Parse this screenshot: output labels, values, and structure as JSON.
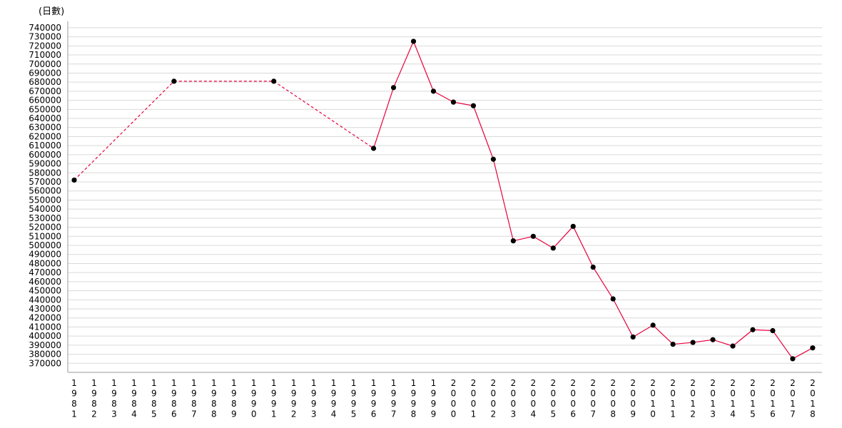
{
  "chart_data": {
    "type": "line",
    "unit_label": "(日數)",
    "ylim": [
      360000,
      747000
    ],
    "y_ticks": [
      370000,
      380000,
      390000,
      400000,
      410000,
      420000,
      430000,
      440000,
      450000,
      460000,
      470000,
      480000,
      490000,
      500000,
      510000,
      520000,
      530000,
      540000,
      550000,
      560000,
      570000,
      580000,
      590000,
      600000,
      610000,
      620000,
      630000,
      640000,
      650000,
      660000,
      670000,
      680000,
      690000,
      700000,
      710000,
      720000,
      730000,
      740000
    ],
    "categories": [
      "1981",
      "1982",
      "1983",
      "1984",
      "1985",
      "1986",
      "1987",
      "1988",
      "1989",
      "1990",
      "1991",
      "1992",
      "1993",
      "1994",
      "1995",
      "1996",
      "1997",
      "1998",
      "1999",
      "2000",
      "2001",
      "2002",
      "2003",
      "2004",
      "2005",
      "2006",
      "2007",
      "2008",
      "2009",
      "2010",
      "2011",
      "2012",
      "2013",
      "2014",
      "2015",
      "2016",
      "2017",
      "2018"
    ],
    "series": [
      {
        "values": [
          572000,
          null,
          null,
          null,
          null,
          681000,
          null,
          null,
          null,
          null,
          681000,
          null,
          null,
          null,
          null,
          607000,
          674000,
          725000,
          670000,
          658000,
          654000,
          595000,
          505000,
          510000,
          497000,
          521000,
          476000,
          441000,
          399000,
          412000,
          391000,
          393000,
          396000,
          389000,
          407000,
          406000,
          375000,
          387000
        ],
        "color": "#e8003d",
        "marker_color": "#000000"
      }
    ],
    "grid": true,
    "legend": "none"
  }
}
